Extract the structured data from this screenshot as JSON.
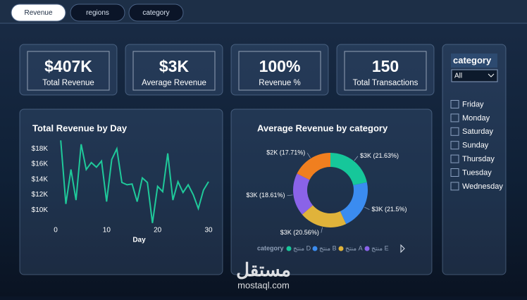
{
  "tabs": [
    "Revenue",
    "regions",
    "category"
  ],
  "kpis": [
    {
      "value": "$407K",
      "label": "Total Revenue"
    },
    {
      "value": "$3K",
      "label": "Average Revenue"
    },
    {
      "value": "100%",
      "label": "Revenue %"
    },
    {
      "value": "150",
      "label": "Total Transactions"
    }
  ],
  "slicer": {
    "title": "category",
    "selected": "All",
    "items": [
      "Friday",
      "Monday",
      "Saturday",
      "Sunday",
      "Thursday",
      "Tuesday",
      "Wednesday"
    ]
  },
  "watermark": {
    "arabic": "مستقل",
    "latin": "mostaql.com"
  },
  "chart_data": [
    {
      "type": "line",
      "title": "Total Revenue by Day",
      "x_label": "Day",
      "color": "#1fc99a",
      "x": [
        1,
        2,
        3,
        4,
        5,
        6,
        7,
        8,
        9,
        10,
        11,
        12,
        13,
        14,
        15,
        16,
        17,
        18,
        19,
        20,
        21,
        22,
        23,
        24,
        25,
        26,
        27,
        28,
        29,
        30
      ],
      "values": [
        19100,
        10800,
        15300,
        11300,
        18600,
        15300,
        16200,
        15600,
        16400,
        11100,
        16600,
        18000,
        13600,
        13300,
        13400,
        11100,
        14200,
        13600,
        8300,
        13100,
        12400,
        17400,
        11300,
        13700,
        12300,
        13300,
        12000,
        10200,
        12600,
        13700
      ],
      "xlim": [
        0,
        30
      ],
      "xticks": [
        0,
        10,
        20,
        30
      ],
      "ylim": [
        8000,
        19500
      ],
      "yticks": [
        {
          "value": 10000,
          "label": "$10K"
        },
        {
          "value": 12000,
          "label": "$12K"
        },
        {
          "value": 14000,
          "label": "$14K"
        },
        {
          "value": 16000,
          "label": "$16K"
        },
        {
          "value": 18000,
          "label": "$18K"
        }
      ]
    },
    {
      "type": "pie",
      "title": "Average Revenue by category",
      "legend_title": "category",
      "categories": [
        "منتج D",
        "منتج B",
        "منتج A",
        "منتج E",
        null
      ],
      "values": [
        21.63,
        21.5,
        20.56,
        18.61,
        17.71
      ],
      "value_labels": [
        "$3K (21.63%)",
        "$3K (21.5%)",
        "$3K (20.56%)",
        "$3K (18.61%)",
        "$2K (17.71%)"
      ],
      "colors": [
        "#16c79a",
        "#3b8cf0",
        "#e0b33a",
        "#8a63e8",
        "#f07f1f"
      ]
    }
  ]
}
